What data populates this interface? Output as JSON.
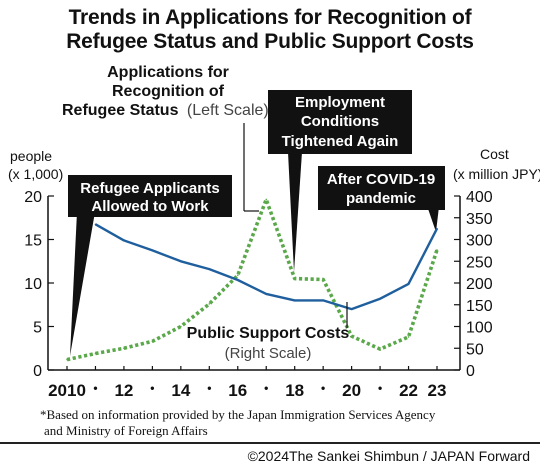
{
  "title": {
    "line1": "Trends in Applications for Recognition of",
    "line2": "Refugee Status and Public Support Costs"
  },
  "chart_data": {
    "type": "line",
    "x": [
      2010,
      2011,
      2012,
      2013,
      2014,
      2015,
      2016,
      2017,
      2018,
      2019,
      2020,
      2021,
      2022,
      2023
    ],
    "x_tick_labels": [
      {
        "x": 2010,
        "label": "2010"
      },
      {
        "x": 2011,
        "label": "•"
      },
      {
        "x": 2012,
        "label": "12"
      },
      {
        "x": 2013,
        "label": "•"
      },
      {
        "x": 2014,
        "label": "14"
      },
      {
        "x": 2015,
        "label": "•"
      },
      {
        "x": 2016,
        "label": "16"
      },
      {
        "x": 2017,
        "label": "•"
      },
      {
        "x": 2018,
        "label": "18"
      },
      {
        "x": 2019,
        "label": "•"
      },
      {
        "x": 2020,
        "label": "20"
      },
      {
        "x": 2021,
        "label": "•"
      },
      {
        "x": 2022,
        "label": "22"
      },
      {
        "x": 2023,
        "label": "23"
      }
    ],
    "left_axis": {
      "label_line1": "people",
      "label_line2": "(x 1,000)",
      "ylim": [
        0,
        20
      ],
      "ticks": [
        0,
        5,
        10,
        15,
        20
      ]
    },
    "right_axis": {
      "label_line1": "Cost",
      "label_line2": "(x million JPY)",
      "ylim": [
        0,
        400
      ],
      "ticks": [
        0,
        50,
        100,
        150,
        200,
        250,
        300,
        350,
        400
      ]
    },
    "series": [
      {
        "name": "Applications for Recognition of Refugee Status",
        "axis": "left",
        "style": "dotted",
        "color": "#5aa84a",
        "values": [
          1.2,
          1.9,
          2.5,
          3.3,
          5.0,
          7.6,
          10.9,
          19.6,
          10.5,
          10.4,
          3.9,
          2.4,
          3.8,
          13.8
        ]
      },
      {
        "name": "Public Support Costs",
        "axis": "right",
        "style": "solid",
        "color": "#1f5f9e",
        "values": [
          null,
          335,
          298,
          275,
          250,
          232,
          207,
          175,
          160,
          160,
          140,
          164,
          198,
          325
        ]
      }
    ],
    "annotations": {
      "applications_label": {
        "line1": "Applications for",
        "line2": "Recognition of",
        "line3_bold": "Refugee Status",
        "line3_note": "(Left Scale)"
      },
      "costs_label": {
        "bold": "Public Support Costs",
        "note": "(Right Scale)"
      },
      "event_2010": {
        "line1": "Refugee Applicants",
        "line2": "Allowed to Work"
      },
      "event_2018": {
        "line1": "Employment",
        "line2": "Conditions",
        "line3": "Tightened Again"
      },
      "event_2023": {
        "line1": "After COVID-19",
        "line2": "pandemic"
      }
    },
    "grid": false
  },
  "footnote": {
    "line1": "*Based on information provided by the Japan Immigration Services Agency",
    "line2": "and Ministry of Foreign Affairs"
  },
  "copyright": "©2024The Sankei Shimbun / JAPAN Forward"
}
